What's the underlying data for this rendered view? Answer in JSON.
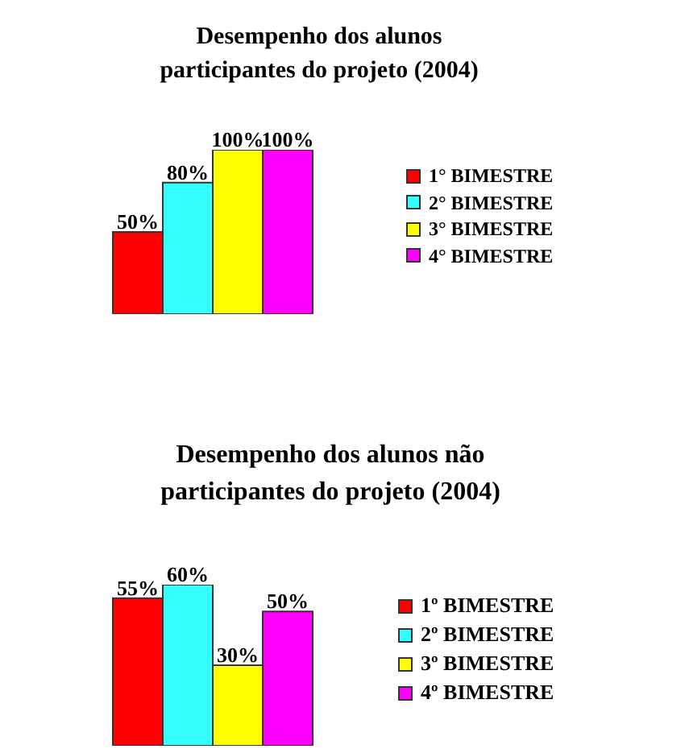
{
  "chart_data": [
    {
      "type": "bar",
      "title": "Desempenho dos alunos participantes do projeto (2004)",
      "categories": [
        null
      ],
      "legend": "right",
      "series": [
        {
          "name": "1° BIMESTRE",
          "color": "#ff0000",
          "values": [
            50
          ],
          "value_labels": [
            "50%"
          ]
        },
        {
          "name": "2° BIMESTRE",
          "color": "#33ffff",
          "values": [
            80
          ],
          "value_labels": [
            "80%"
          ]
        },
        {
          "name": "3° BIMESTRE",
          "color": "#ffff00",
          "values": [
            100
          ],
          "value_labels": [
            "100%"
          ]
        },
        {
          "name": "4° BIMESTRE",
          "color": "#ff00ff",
          "values": [
            100
          ],
          "value_labels": [
            "100%"
          ]
        }
      ]
    },
    {
      "type": "bar",
      "title": "Desempenho dos alunos não participantes do projeto (2004)",
      "categories": [
        null
      ],
      "legend": "right",
      "series": [
        {
          "name": "1º BIMESTRE",
          "color": "#ff0000",
          "values": [
            55
          ],
          "value_labels": [
            "55%"
          ]
        },
        {
          "name": "2º BIMESTRE",
          "color": "#33ffff",
          "values": [
            60
          ],
          "value_labels": [
            "60%"
          ]
        },
        {
          "name": "3º BIMESTRE",
          "color": "#ffff00",
          "values": [
            30
          ],
          "value_labels": [
            "30%"
          ]
        },
        {
          "name": "4º BIMESTRE",
          "color": "#ff00ff",
          "values": [
            50
          ],
          "value_labels": [
            "50%"
          ]
        }
      ]
    }
  ]
}
